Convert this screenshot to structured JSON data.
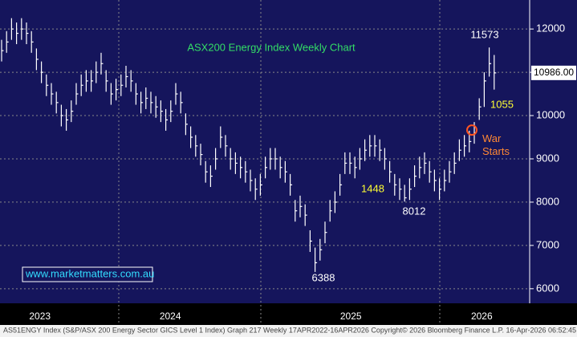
{
  "chart_data": {
    "type": "ohlc",
    "title": "ASX200 Energy Index Weekly Chart",
    "footer": "AS51ENGY Index (S&P/ASX 200 Energy Sector GICS Level 1 Index) Graph 217 Weekly 17APR2022-16APR2026 Copyright© 2026 Bloomberg Finance L.P.  16-Apr-2026 06:52:45",
    "watermark": "www.marketmatters.com.au",
    "annotations": [
      "11573",
      "1055",
      "War Starts",
      "1448",
      "8012",
      "6388"
    ],
    "last_price": {
      "value": 10986,
      "label": "10986.00"
    },
    "bar_color": "#ffffff",
    "grid": true,
    "ylim": [
      5700,
      12670
    ],
    "yticks": [
      6000,
      7000,
      8000,
      9000,
      10000,
      11000,
      12000
    ],
    "xticks": [
      {
        "value": 7.7,
        "label": "2023"
      },
      {
        "value": 33.9,
        "label": "2024"
      },
      {
        "value": 70.2,
        "label": "2025"
      },
      {
        "value": 96.5,
        "label": "2026"
      }
    ],
    "series": [
      {
        "name": "High",
        "values": [
          11750,
          11950,
          12250,
          12150,
          12250,
          12150,
          11950,
          11550,
          11250,
          10950,
          10750,
          10550,
          10250,
          10150,
          10350,
          10750,
          10950,
          11050,
          11050,
          11250,
          11450,
          11050,
          10750,
          10850,
          10950,
          11150,
          11050,
          10750,
          10550,
          10650,
          10550,
          10450,
          10350,
          10150,
          10350,
          10750,
          10550,
          10050,
          9750,
          9550,
          9350,
          8950,
          8850,
          9250,
          9750,
          9550,
          9250,
          9150,
          9050,
          8950,
          8750,
          8550,
          8650,
          9050,
          9250,
          9250,
          9050,
          8950,
          8650,
          8050,
          8150,
          7950,
          7350,
          6950,
          7150,
          7550,
          8050,
          8250,
          8650,
          9150,
          9150,
          9050,
          9250,
          9450,
          9550,
          9550,
          9450,
          9250,
          8950,
          8650,
          8550,
          8400,
          8550,
          8850,
          9050,
          9150,
          8950,
          8750,
          8550,
          8750,
          8950,
          9150,
          9450,
          9550,
          9650,
          9850,
          10400,
          11000,
          11573,
          11400
        ]
      },
      {
        "name": "Low",
        "values": [
          11250,
          11450,
          11750,
          11650,
          11750,
          11650,
          11450,
          11050,
          10750,
          10450,
          10250,
          10050,
          9750,
          9650,
          9850,
          10250,
          10450,
          10550,
          10550,
          10750,
          10950,
          10550,
          10250,
          10350,
          10450,
          10650,
          10550,
          10250,
          10050,
          10150,
          10050,
          9950,
          9850,
          9650,
          9850,
          10250,
          10050,
          9550,
          9250,
          9050,
          8850,
          8450,
          8350,
          8750,
          9250,
          9050,
          8750,
          8650,
          8550,
          8450,
          8250,
          8050,
          8150,
          8550,
          8750,
          8750,
          8550,
          8450,
          8150,
          7550,
          7650,
          7450,
          6850,
          6388,
          6650,
          7050,
          7550,
          7750,
          8150,
          8650,
          8650,
          8550,
          8750,
          8950,
          9050,
          9050,
          8950,
          8750,
          8450,
          8150,
          8050,
          8012,
          8050,
          8350,
          8550,
          8650,
          8450,
          8250,
          8050,
          8250,
          8450,
          8650,
          8950,
          9050,
          9150,
          9350,
          9900,
          10200,
          10900,
          10600
        ]
      },
      {
        "name": "Close",
        "values": [
          11500,
          11700,
          12000,
          11900,
          12000,
          11900,
          11700,
          11300,
          11000,
          10700,
          10500,
          10300,
          10000,
          9900,
          10100,
          10500,
          10700,
          10800,
          10800,
          11000,
          11200,
          10800,
          10500,
          10600,
          10700,
          10900,
          10800,
          10500,
          10300,
          10400,
          10300,
          10200,
          10100,
          9900,
          10100,
          10500,
          10300,
          9800,
          9500,
          9300,
          9100,
          8700,
          8600,
          9000,
          9500,
          9300,
          9000,
          8900,
          8800,
          8700,
          8500,
          8300,
          8400,
          8800,
          9000,
          9000,
          8800,
          8700,
          8400,
          7800,
          7900,
          7700,
          7100,
          6600,
          6900,
          7300,
          7800,
          8000,
          8400,
          8900,
          8900,
          8800,
          9000,
          9200,
          9300,
          9300,
          9200,
          9000,
          8700,
          8400,
          8300,
          8100,
          8300,
          8600,
          8800,
          8900,
          8700,
          8500,
          8300,
          8500,
          8700,
          8900,
          9200,
          9300,
          9400,
          9600,
          10200,
          10800,
          11200,
          10986
        ]
      }
    ]
  }
}
